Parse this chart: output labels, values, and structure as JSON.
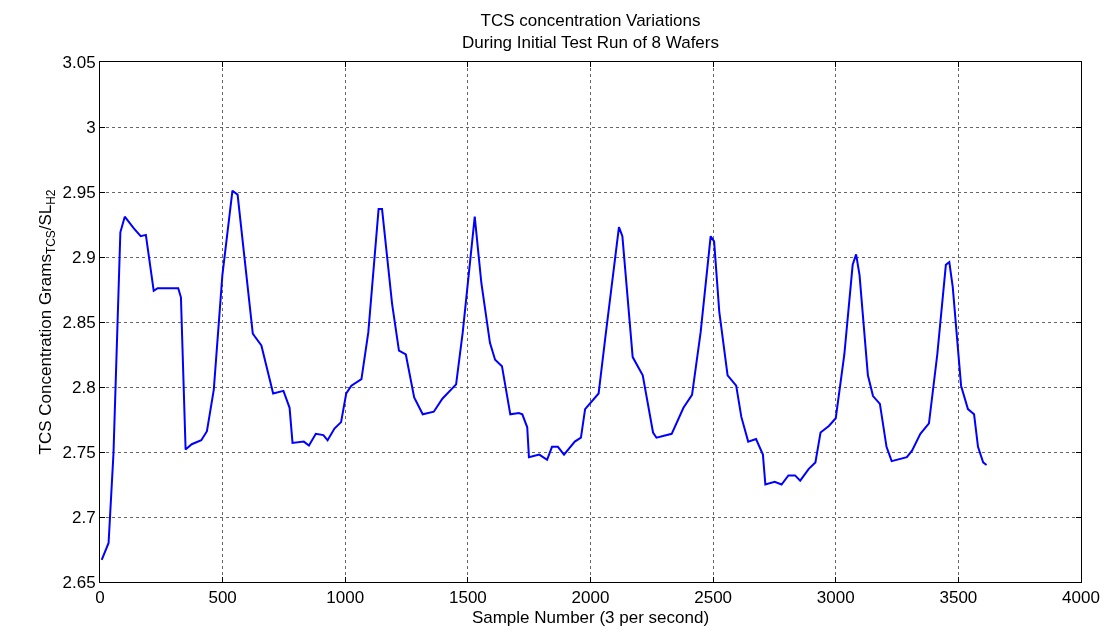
{
  "chart_data": {
    "type": "line",
    "title": "TCS concentration Variations\nDuring Initial Test Run of 8 Wafers",
    "xlabel": "Sample Number (3 per second)",
    "ylabel": "TCS Concentration Grams$_{TCS}$/SL$_{H2}$",
    "x": [
      7,
      35,
      55,
      83,
      101,
      138,
      166,
      187,
      219,
      235,
      319,
      330,
      349,
      374,
      413,
      436,
      464,
      499,
      540,
      561,
      623,
      658,
      706,
      748,
      773,
      785,
      831,
      852,
      880,
      911,
      928,
      956,
      983,
      1004,
      1025,
      1066,
      1094,
      1136,
      1150,
      1191,
      1219,
      1247,
      1281,
      1316,
      1361,
      1396,
      1452,
      1479,
      1528,
      1555,
      1590,
      1611,
      1639,
      1673,
      1708,
      1722,
      1742,
      1749,
      1791,
      1823,
      1843,
      1867,
      1892,
      1936,
      1961,
      1978,
      2033,
      2061,
      2116,
      2130,
      2172,
      2213,
      2255,
      2269,
      2331,
      2379,
      2414,
      2449,
      2490,
      2504,
      2525,
      2559,
      2594,
      2615,
      2643,
      2675,
      2703,
      2713,
      2751,
      2779,
      2807,
      2834,
      2855,
      2890,
      2917,
      2938,
      2972,
      3000,
      3035,
      3069,
      3083,
      3097,
      3131,
      3152,
      3180,
      3207,
      3228,
      3290,
      3311,
      3345,
      3380,
      3414,
      3449,
      3463,
      3477,
      3511,
      3539,
      3564,
      3580,
      3601,
      3615
    ],
    "series": [
      {
        "color": "#0000ff",
        "values": [
          2.667,
          2.68,
          2.749,
          2.919,
          2.931,
          2.922,
          2.916,
          2.917,
          2.874,
          2.876,
          2.876,
          2.869,
          2.752,
          2.756,
          2.759,
          2.766,
          2.798,
          2.886,
          2.951,
          2.948,
          2.841,
          2.832,
          2.795,
          2.797,
          2.784,
          2.757,
          2.758,
          2.755,
          2.764,
          2.763,
          2.759,
          2.768,
          2.773,
          2.795,
          2.801,
          2.806,
          2.842,
          2.937,
          2.937,
          2.864,
          2.828,
          2.825,
          2.792,
          2.779,
          2.781,
          2.791,
          2.802,
          2.842,
          2.931,
          2.88,
          2.834,
          2.821,
          2.816,
          2.779,
          2.78,
          2.779,
          2.769,
          2.746,
          2.748,
          2.744,
          2.754,
          2.754,
          2.748,
          2.758,
          2.761,
          2.783,
          2.795,
          2.839,
          2.923,
          2.916,
          2.823,
          2.809,
          2.765,
          2.761,
          2.764,
          2.784,
          2.794,
          2.842,
          2.916,
          2.912,
          2.858,
          2.809,
          2.801,
          2.777,
          2.758,
          2.76,
          2.748,
          2.725,
          2.727,
          2.725,
          2.732,
          2.732,
          2.728,
          2.737,
          2.742,
          2.765,
          2.77,
          2.776,
          2.825,
          2.894,
          2.902,
          2.886,
          2.809,
          2.793,
          2.787,
          2.754,
          2.743,
          2.746,
          2.751,
          2.764,
          2.772,
          2.825,
          2.894,
          2.896,
          2.877,
          2.801,
          2.783,
          2.779,
          2.754,
          2.742,
          2.74
        ]
      }
    ],
    "xlim": [
      0,
      4000
    ],
    "xticks": [
      0,
      500,
      1000,
      1500,
      2000,
      2500,
      3000,
      3500,
      4000
    ],
    "ylim": [
      2.65,
      3.05
    ],
    "yticks": [
      2.65,
      2.7,
      2.75,
      2.8,
      2.85,
      2.9,
      2.95,
      3,
      3.05
    ],
    "grid": true,
    "line_style": "solid",
    "marker": "none"
  }
}
